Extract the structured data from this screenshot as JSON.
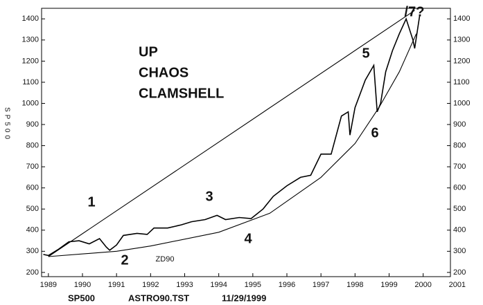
{
  "chart_data": {
    "type": "line",
    "ylabel": "SP500",
    "footer": [
      "SP500",
      "ASTRO90.TST",
      "11/29/1999"
    ],
    "annotations": [
      "UP",
      "CHAOS",
      "CLAMSHELL",
      "1",
      "2",
      "3",
      "4",
      "5",
      "6",
      "/7?",
      "ZD90"
    ],
    "xlim": [
      1988.8,
      2000.8
    ],
    "xticks": [
      1989,
      1990,
      1991,
      1992,
      1993,
      1994,
      1995,
      1996,
      1997,
      1998,
      1999,
      2000,
      2001
    ],
    "ylim": [
      180,
      1450
    ],
    "yticks": [
      200,
      300,
      400,
      500,
      600,
      700,
      800,
      900,
      1000,
      1100,
      1200,
      1300,
      1400
    ],
    "series": [
      {
        "color": "#000000",
        "x": [
          1988.85,
          1989.0,
          1989.3,
          1989.6,
          1989.9,
          1990.2,
          1990.5,
          1990.7,
          1990.8,
          1991.0,
          1991.2,
          1991.6,
          1991.9,
          1992.1,
          1992.5,
          1992.9,
          1993.2,
          1993.6,
          1993.95,
          1994.2,
          1994.6,
          1994.95,
          1995.3,
          1995.6,
          1996.0,
          1996.4,
          1996.7,
          1997.0,
          1997.3,
          1997.6,
          1997.8,
          1997.85,
          1998.0,
          1998.3,
          1998.55,
          1998.65,
          1998.75,
          1998.9,
          1999.1,
          1999.3,
          1999.5,
          1999.7,
          1999.75,
          1999.9
        ],
        "values": [
          285,
          280,
          310,
          345,
          350,
          335,
          360,
          320,
          305,
          330,
          375,
          385,
          380,
          410,
          410,
          425,
          440,
          450,
          470,
          450,
          460,
          455,
          500,
          560,
          610,
          650,
          660,
          760,
          760,
          940,
          960,
          850,
          980,
          1110,
          1180,
          960,
          1000,
          1150,
          1250,
          1330,
          1400,
          1300,
          1260,
          1420
        ]
      },
      {
        "color": "#000000",
        "x": [
          1989.0,
          1999.75
        ],
        "values": [
          275,
          1440
        ]
      },
      {
        "color": "#000000",
        "x": [
          1989.0,
          1991.0,
          1992.0,
          1994.0,
          1995.5,
          1997.0,
          1998.0,
          1998.7,
          1999.3,
          1999.8
        ],
        "values": [
          275,
          300,
          325,
          390,
          480,
          650,
          810,
          980,
          1150,
          1330
        ]
      }
    ]
  }
}
